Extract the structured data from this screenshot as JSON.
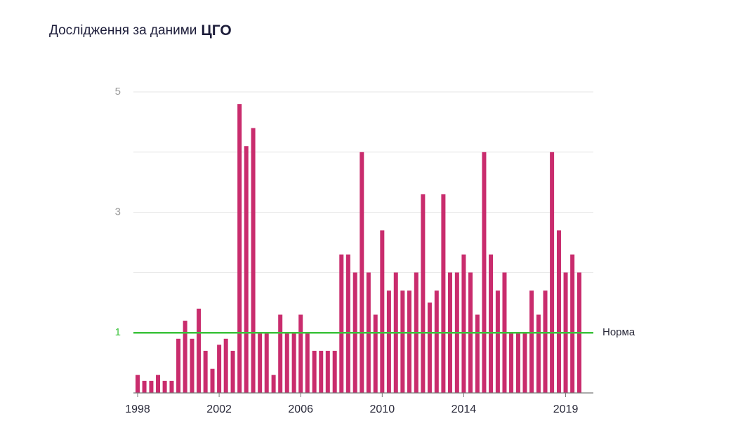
{
  "chart_data": {
    "type": "bar",
    "title": "Дослідження за даними",
    "title_emphasis": "ЦГО",
    "color": "#c92c6d",
    "x": [
      1998,
      1998.33,
      1998.67,
      1999,
      1999.33,
      1999.67,
      2000,
      2000.33,
      2000.67,
      2001,
      2001.33,
      2001.67,
      2002,
      2002.33,
      2002.67,
      2003,
      2003.33,
      2003.67,
      2004,
      2004.33,
      2004.67,
      2005,
      2005.33,
      2005.67,
      2006,
      2006.33,
      2006.67,
      2007,
      2007.33,
      2007.67,
      2008,
      2008.33,
      2008.67,
      2009,
      2009.33,
      2009.67,
      2010,
      2010.33,
      2010.67,
      2011,
      2011.33,
      2011.67,
      2012,
      2012.33,
      2012.67,
      2013,
      2013.33,
      2013.67,
      2014,
      2014.33,
      2014.67,
      2015,
      2015.33,
      2015.67,
      2016,
      2016.33,
      2016.67,
      2017,
      2017.33,
      2017.67,
      2018,
      2018.33,
      2018.67,
      2019,
      2019.33,
      2019.67
    ],
    "values": [
      0.3,
      0.2,
      0.2,
      0.3,
      0.2,
      0.2,
      0.9,
      1.2,
      0.9,
      1.4,
      0.7,
      0.4,
      0.8,
      0.9,
      0.7,
      4.8,
      4.1,
      4.4,
      1.0,
      1.0,
      0.3,
      1.3,
      1.0,
      1.0,
      1.3,
      1.0,
      0.7,
      0.7,
      0.7,
      0.7,
      2.3,
      2.3,
      2.0,
      4.0,
      2.0,
      1.3,
      2.7,
      1.7,
      2.0,
      1.7,
      1.7,
      2.0,
      3.3,
      1.5,
      1.7,
      3.3,
      2.0,
      2.0,
      2.3,
      2.0,
      1.3,
      4.0,
      2.3,
      1.7,
      2.0,
      1.0,
      1.0,
      1.0,
      1.7,
      1.3,
      1.7,
      4.0,
      2.7,
      2.0,
      2.3,
      2.0
    ],
    "xlim": [
      1998,
      2019.67
    ],
    "xticks": [
      1998,
      2002,
      2006,
      2010,
      2014,
      2019
    ],
    "ylim": [
      0,
      5
    ],
    "yticks": [
      1,
      3,
      5
    ],
    "minor_yticks": [
      2,
      4
    ],
    "grid": true,
    "reference_line": {
      "value": 1,
      "label": "Норма",
      "color": "#3cc33c"
    }
  }
}
